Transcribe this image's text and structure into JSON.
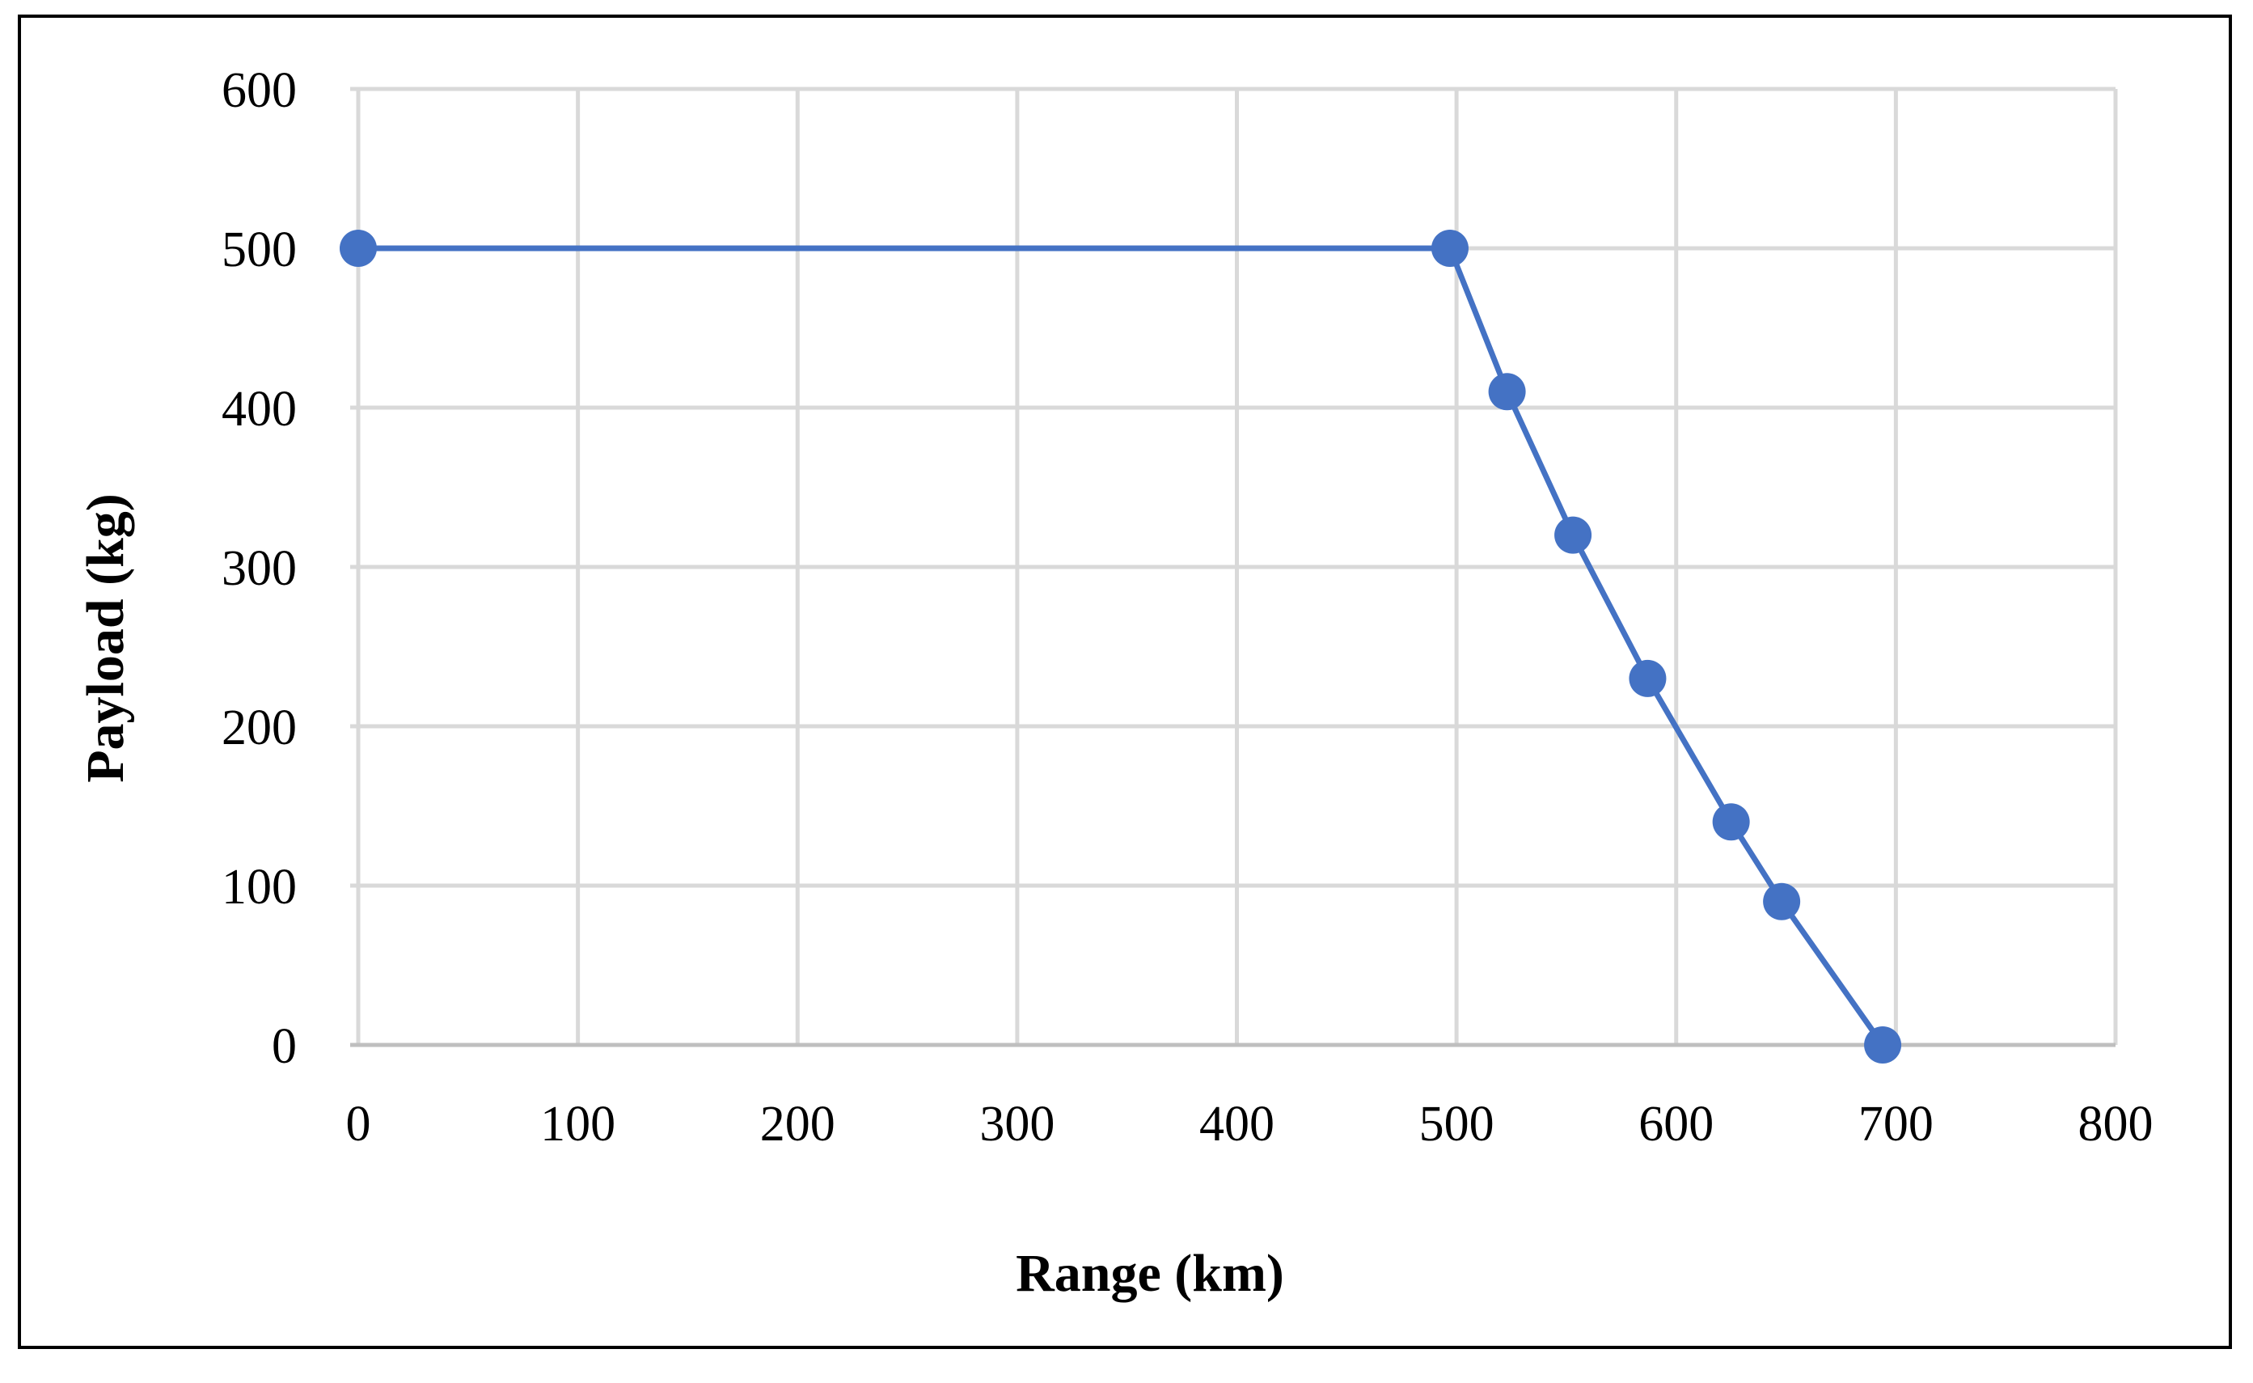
{
  "chart_data": {
    "type": "line",
    "xlabel": "Range (km)",
    "ylabel": "Payload (kg)",
    "xlim": [
      0,
      800
    ],
    "ylim": [
      0,
      600
    ],
    "x_ticks": [
      0,
      100,
      200,
      300,
      400,
      500,
      600,
      700,
      800
    ],
    "y_ticks": [
      0,
      100,
      200,
      300,
      400,
      500,
      600
    ],
    "grid": true,
    "legend": "none",
    "series": [
      {
        "color": "#4472C4",
        "marker": "circle",
        "points": [
          {
            "x": 0,
            "y": 500
          },
          {
            "x": 497,
            "y": 500
          },
          {
            "x": 523,
            "y": 410
          },
          {
            "x": 553,
            "y": 320
          },
          {
            "x": 587,
            "y": 230
          },
          {
            "x": 625,
            "y": 140
          },
          {
            "x": 648,
            "y": 90
          },
          {
            "x": 694,
            "y": 0
          }
        ]
      }
    ],
    "colors": {
      "line": "#4472C4",
      "grid": "#D9D9D9",
      "frame": "#000000"
    }
  }
}
